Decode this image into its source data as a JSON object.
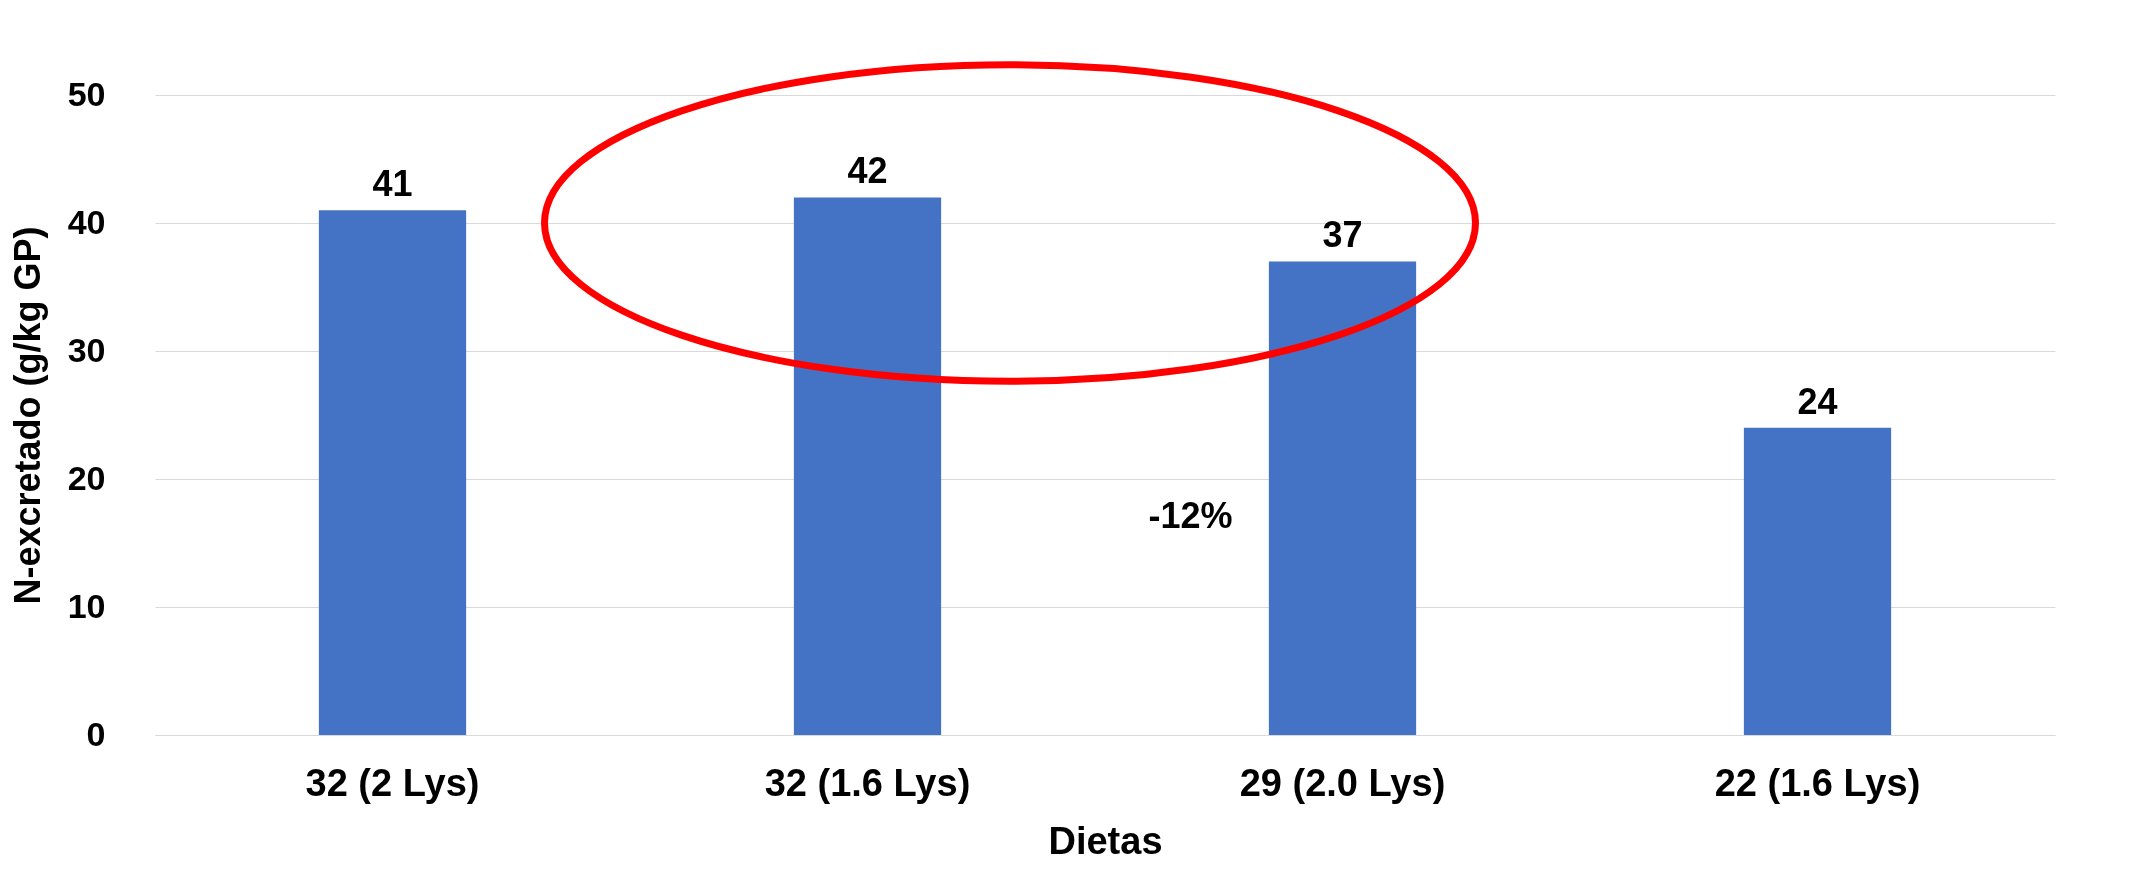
{
  "chart_data": {
    "type": "bar",
    "xlabel": "Dietas",
    "ylabel": "N-excretado (g/kg GP)",
    "categories": [
      "32 (2 Lys)",
      "32 (1.6 Lys)",
      "29 (2.0 Lys)",
      "22 (1.6 Lys)"
    ],
    "values": [
      41,
      42,
      37,
      24
    ],
    "color": "#4472c4",
    "ylim": [
      0,
      50
    ],
    "yticks": [
      0,
      10,
      20,
      30,
      40,
      50
    ],
    "grid": "y",
    "data_labels": true,
    "annotations": [
      "-12%"
    ]
  }
}
